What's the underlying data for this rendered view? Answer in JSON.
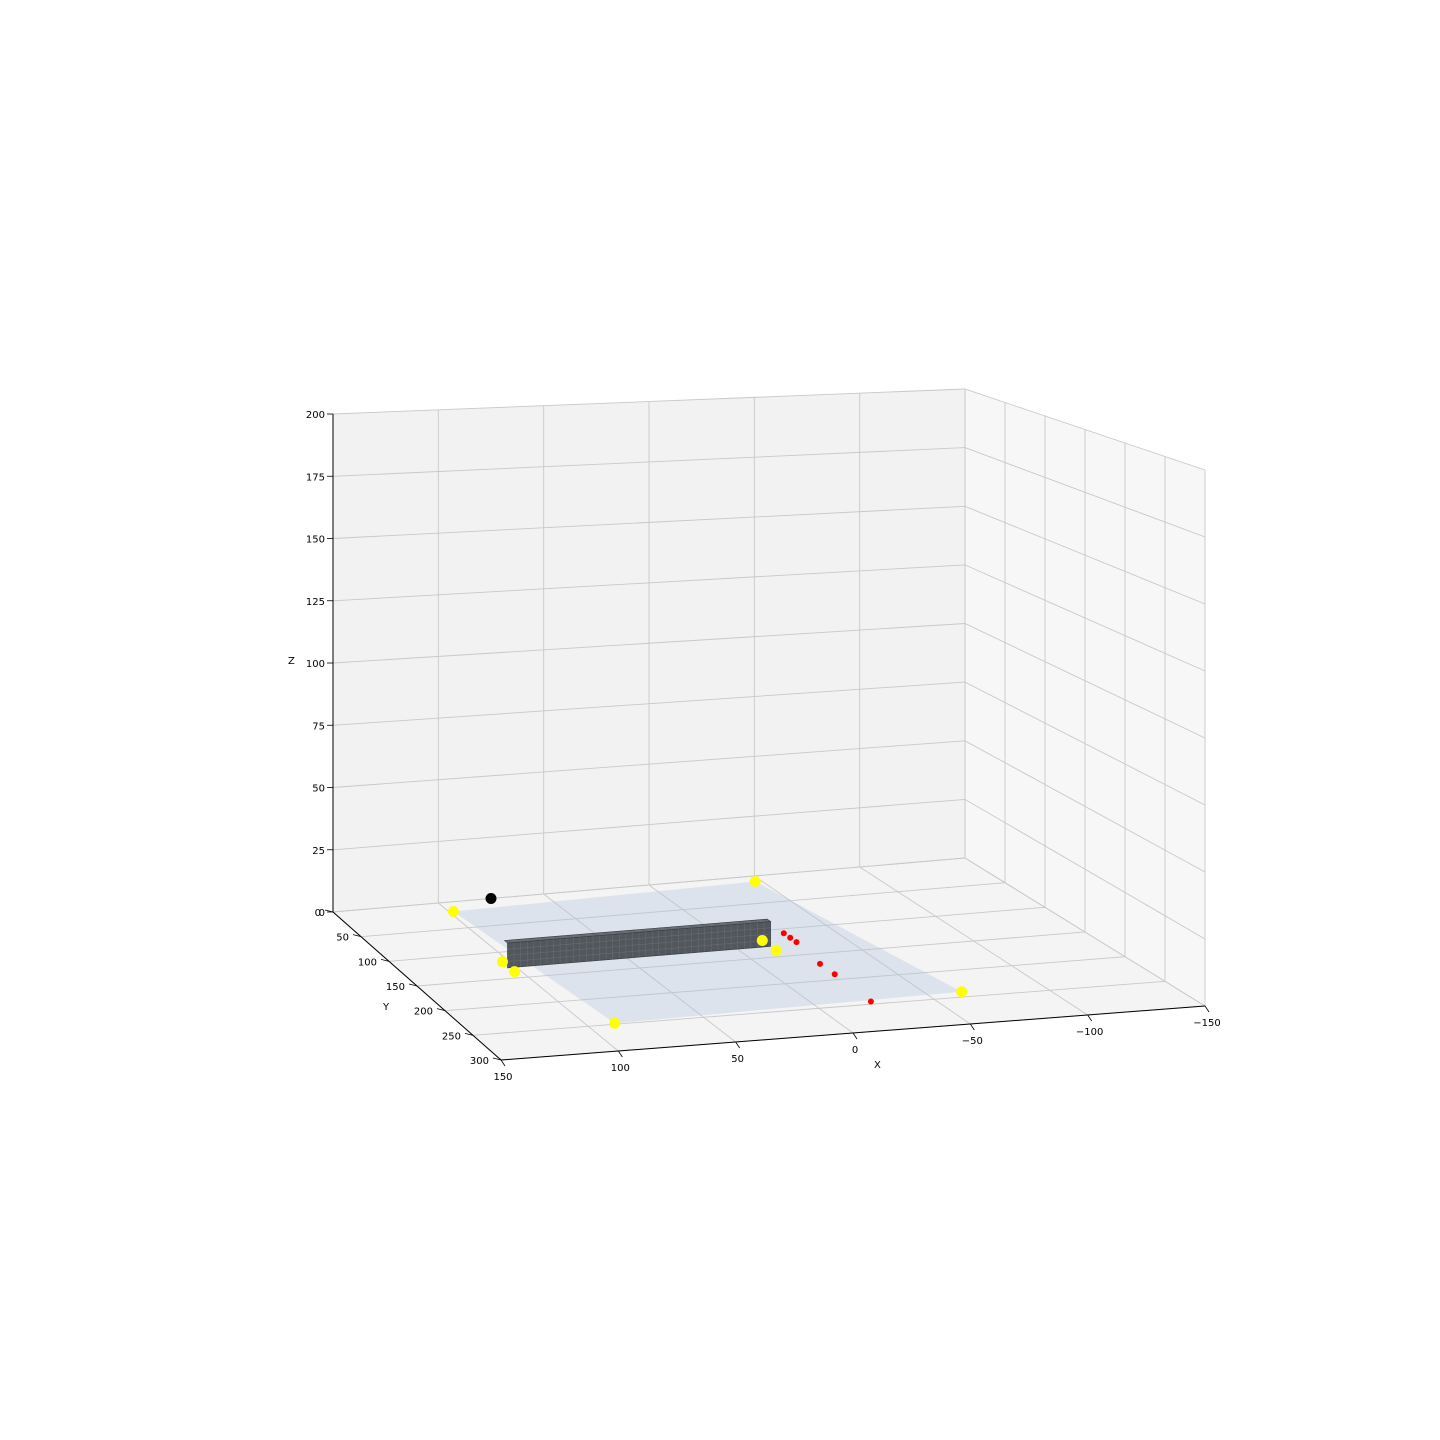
{
  "chart_data": {
    "type": "scatter3d",
    "title": "",
    "xlabel": "X",
    "ylabel": "Y",
    "zlabel": "Z",
    "xlim": [
      150,
      -150
    ],
    "ylim": [
      0,
      300
    ],
    "zlim": [
      0,
      200
    ],
    "x_ticks": [
      "150",
      "100",
      "50",
      "0",
      "−50",
      "−100",
      "−150"
    ],
    "y_ticks": [
      "0",
      "50",
      "100",
      "150",
      "200",
      "250",
      "300"
    ],
    "z_ticks": [
      "0",
      "25",
      "50",
      "75",
      "100",
      "125",
      "150",
      "175",
      "200"
    ],
    "grid": true,
    "plane": {
      "color": "#b0c4de",
      "corners": [
        [
          98,
          18,
          0
        ],
        [
          -47,
          10,
          0
        ],
        [
          -65,
          240,
          0
        ],
        [
          88,
          248,
          0
        ]
      ]
    },
    "box": {
      "color": "#4a4f55",
      "x_range": [
        104,
        -15
      ],
      "y_range": [
        125,
        130
      ],
      "z_range": [
        0,
        10
      ]
    },
    "series": [
      {
        "name": "yellow markers",
        "color": "#ffff00",
        "points": [
          [
            98,
            18,
            0
          ],
          [
            -47,
            10,
            0
          ],
          [
            -65,
            240,
            0
          ],
          [
            88,
            248,
            0
          ],
          [
            103,
            118,
            0
          ],
          [
            103,
            138,
            0
          ],
          [
            -15,
            118,
            0
          ],
          [
            -15,
            138,
            0
          ]
        ]
      },
      {
        "name": "black marker",
        "color": "#000000",
        "points": [
          [
            75,
            0,
            0
          ]
        ]
      },
      {
        "name": "red markers",
        "color": "#ff0000",
        "points": [
          [
            -28,
            108,
            0
          ],
          [
            -28,
            117,
            0
          ],
          [
            -28,
            126,
            0
          ],
          [
            -25,
            169,
            0
          ],
          [
            -25,
            190,
            0
          ],
          [
            -24,
            245,
            0
          ]
        ]
      }
    ]
  }
}
